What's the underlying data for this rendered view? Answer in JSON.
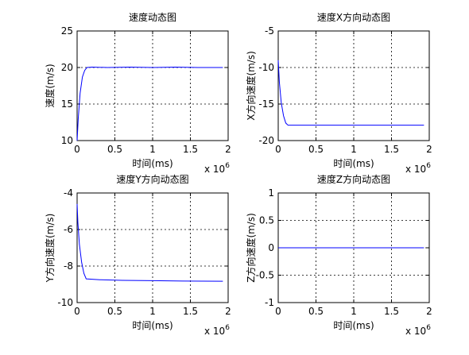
{
  "figure": {
    "background": "#ffffff",
    "line_color": "#0000ff",
    "grid_color": "#000000"
  },
  "chart_data": [
    {
      "type": "line",
      "title": "速度动态图",
      "xlabel": "时间(ms)",
      "ylabel": "速度(m/s)",
      "xlim": [
        0,
        2
      ],
      "ylim": [
        10,
        25
      ],
      "xticks": [
        "0",
        "0.5",
        "1",
        "1.5",
        "2"
      ],
      "yticks": [
        "10",
        "15",
        "20",
        "25"
      ],
      "x_exponent": "x 10^6",
      "grid": true,
      "series": [
        {
          "x": [
            0,
            0.015,
            0.04,
            0.07,
            0.1,
            0.13,
            0.2,
            0.4,
            0.7,
            1.0,
            1.3,
            1.6,
            1.93
          ],
          "y": [
            10.0,
            13.0,
            16.5,
            18.7,
            19.6,
            20.0,
            20.05,
            20.0,
            20.05,
            20.0,
            20.05,
            20.0,
            20.0
          ]
        }
      ]
    },
    {
      "type": "line",
      "title": "速度X方向动态图",
      "xlabel": "时间(ms)",
      "ylabel": "X方向速度(m/s)",
      "xlim": [
        0,
        2
      ],
      "ylim": [
        -20,
        -5
      ],
      "xticks": [
        "0",
        "0.5",
        "1",
        "1.5",
        "2"
      ],
      "yticks": [
        "-20",
        "-15",
        "-10",
        "-5"
      ],
      "x_exponent": "x 10^6",
      "grid": true,
      "series": [
        {
          "x": [
            0,
            0.015,
            0.04,
            0.07,
            0.1,
            0.13,
            0.5,
            1.0,
            1.5,
            1.93
          ],
          "y": [
            -9.0,
            -12.0,
            -14.8,
            -16.6,
            -17.6,
            -17.9,
            -17.9,
            -17.9,
            -17.9,
            -17.9
          ]
        }
      ]
    },
    {
      "type": "line",
      "title": "速度Y方向动态图",
      "xlabel": "时间(ms)",
      "ylabel": "Y方向速度(m/s)",
      "xlim": [
        0,
        2
      ],
      "ylim": [
        -10,
        -4
      ],
      "xticks": [
        "0",
        "0.5",
        "1",
        "1.5",
        "2"
      ],
      "yticks": [
        "-10",
        "-8",
        "-6",
        "-4"
      ],
      "x_exponent": "x 10^6",
      "grid": true,
      "series": [
        {
          "x": [
            0,
            0.01,
            0.03,
            0.06,
            0.09,
            0.12,
            0.3,
            0.6,
            1.0,
            1.4,
            1.93
          ],
          "y": [
            -4.6,
            -5.6,
            -6.8,
            -7.8,
            -8.4,
            -8.7,
            -8.75,
            -8.78,
            -8.8,
            -8.82,
            -8.83
          ]
        }
      ]
    },
    {
      "type": "line",
      "title": "速度Z方向动态图",
      "xlabel": "时间(ms)",
      "ylabel": "Z方向速度(m/s)",
      "xlim": [
        0,
        2
      ],
      "ylim": [
        -1,
        1
      ],
      "xticks": [
        "0",
        "0.5",
        "1",
        "1.5",
        "2"
      ],
      "yticks": [
        "-1",
        "-0.5",
        "0",
        "0.5",
        "1"
      ],
      "x_exponent": "x 10^6",
      "grid": true,
      "series": [
        {
          "x": [
            0,
            0.5,
            1.0,
            1.5,
            1.93
          ],
          "y": [
            0,
            0,
            0,
            0,
            0
          ]
        }
      ]
    }
  ]
}
